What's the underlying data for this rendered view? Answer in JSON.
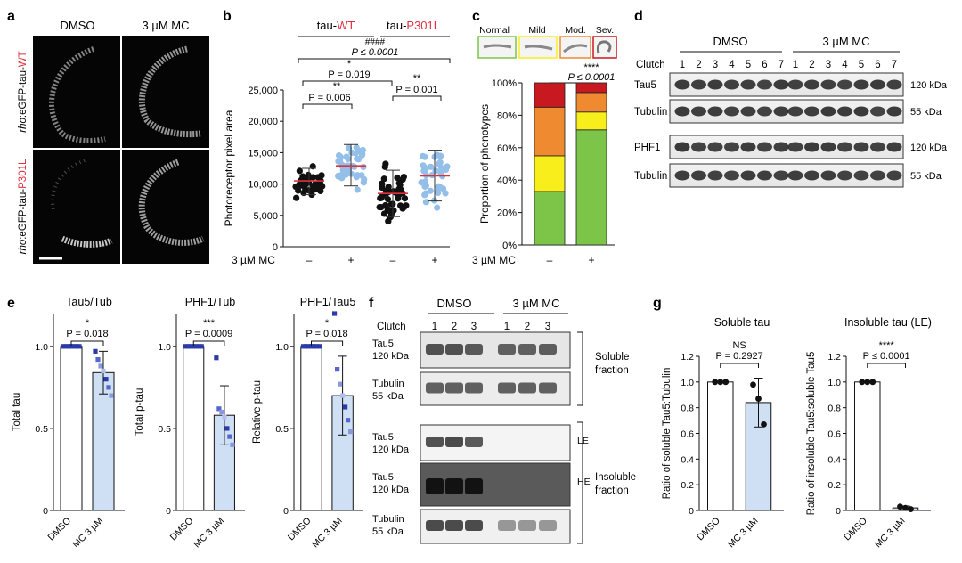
{
  "panel_a": {
    "letter": "a",
    "col_labels": [
      "DMSO",
      "3 µM MC"
    ],
    "row1_prefix": "rho",
    "row1_middle": ":eGFP-tau-",
    "row1_suffix": "WT",
    "row2_prefix": "rho",
    "row2_middle": ":eGFP-tau-",
    "row2_suffix": "P301L"
  },
  "panel_b": {
    "letter": "b",
    "group_wt_prefix": "tau-",
    "group_wt_suffix": "WT",
    "group_mut_prefix": "tau-",
    "group_mut_suffix": "P301L",
    "sig_top_stars": "####",
    "sig_top_p": "P ≤ 0.0001",
    "sig_star1": "*",
    "sig_p1": "P = 0.019",
    "sig_wt_stars": "**",
    "sig_wt_p": "P = 0.006",
    "sig_mut_stars": "**",
    "sig_mut_p": "P = 0.001",
    "treatment_label": "3 µM MC",
    "treatment_values": [
      "–",
      "+",
      "–",
      "+"
    ]
  },
  "panel_c": {
    "letter": "c",
    "phenotypes": [
      "Normal",
      "Mild",
      "Mod.",
      "Sev."
    ],
    "sig_stars": "****",
    "sig_p": "P ≤ 0.0001",
    "treatment_label": "3 µM MC",
    "treatment_values": [
      "–",
      "+"
    ]
  },
  "panel_d": {
    "letter": "d",
    "group_labels": [
      "DMSO",
      "3 µM MC"
    ],
    "clutch_label": "Clutch",
    "clutch_numbers": [
      "1",
      "2",
      "3",
      "4",
      "5",
      "6",
      "7",
      "1",
      "2",
      "3",
      "4",
      "5",
      "6",
      "7"
    ],
    "row_labels": [
      "Tau5",
      "Tubulin",
      "PHF1",
      "Tubulin"
    ],
    "kda_labels": [
      "120 kDa",
      "55 kDa",
      "120 kDa",
      "55 kDa"
    ]
  },
  "panel_e": {
    "letter": "e",
    "plots": [
      {
        "title": "Tau5/Tub",
        "stars": "*",
        "p": "P = 0.018"
      },
      {
        "title": "PHF1/Tub",
        "stars": "***",
        "p": "P = 0.0009"
      },
      {
        "title": "PHF1/Tau5",
        "stars": "*",
        "p": "P = 0.018"
      }
    ],
    "x_labels": [
      "DMSO",
      "MC 3 µM"
    ]
  },
  "panel_f": {
    "letter": "f",
    "group_labels": [
      "DMSO",
      "3 µM MC"
    ],
    "clutch_label": "Clutch",
    "clutch_numbers": [
      "1",
      "2",
      "3",
      "1",
      "2",
      "3"
    ],
    "blot_labels": [
      [
        "Tau5",
        "120 kDa"
      ],
      [
        "Tubulin",
        "55 kDa"
      ],
      [
        "Tau5",
        "120 kDa"
      ],
      [
        "Tau5",
        "120 kDa"
      ],
      [
        "Tubulin",
        "55 kDa"
      ]
    ],
    "soluble_label": [
      "Soluble",
      "fraction"
    ],
    "insoluble_label": [
      "Insoluble",
      "fraction"
    ],
    "le_label": "LE",
    "he_label": "HE"
  },
  "panel_g": {
    "letter": "g",
    "plots": [
      {
        "title": "Soluble tau",
        "stars": "NS",
        "p": "P = 0.2927"
      },
      {
        "title": "Insoluble tau (LE)",
        "stars": "****",
        "p": "P ≤ 0.0001"
      }
    ],
    "x_labels": [
      "DMSO",
      "MC 3 µM"
    ]
  },
  "chart_data": [
    {
      "panel": "b",
      "type": "scatter",
      "ylabel": "Photoreceptor pixel area",
      "ylim": [
        0,
        25000
      ],
      "yticks": [
        0,
        5000,
        10000,
        15000,
        20000,
        25000
      ],
      "ytick_labels": [
        "0",
        "5,000",
        "10,000",
        "15,000",
        "20,000",
        "25,000"
      ],
      "groups": [
        {
          "mean": 10500,
          "sd_low": 8300,
          "sd_high": 12500,
          "color": "#111111",
          "n": 40
        },
        {
          "mean": 12900,
          "sd_low": 9700,
          "sd_high": 16300,
          "color": "#93bfe8",
          "n": 40
        },
        {
          "mean": 8500,
          "sd_low": 4800,
          "sd_high": 12200,
          "color": "#111111",
          "n": 50
        },
        {
          "mean": 11300,
          "sd_low": 7300,
          "sd_high": 15400,
          "color": "#93bfe8",
          "n": 40
        }
      ],
      "mean_line_color": "#e03040"
    },
    {
      "panel": "c",
      "type": "bar",
      "stacked": true,
      "ylabel": "Proportion of phenotypes",
      "ylim": [
        0,
        100
      ],
      "yticks": [
        0,
        20,
        40,
        60,
        80,
        100
      ],
      "ytick_labels": [
        "0%",
        "20%",
        "40%",
        "60%",
        "80%",
        "100%"
      ],
      "categories": [
        "–",
        "+"
      ],
      "series": [
        {
          "values": [
            33,
            71
          ],
          "color": "#7dc548"
        },
        {
          "values": [
            22,
            11
          ],
          "color": "#f7ee1b"
        },
        {
          "values": [
            30,
            12
          ],
          "color": "#f08a30"
        },
        {
          "values": [
            15,
            6
          ],
          "color": "#c81820"
        }
      ]
    },
    {
      "panel": "e",
      "type": "bar",
      "ylabel": "Total tau",
      "ylim": [
        0,
        1.2
      ],
      "yticks": [
        0,
        0.5,
        1.0
      ],
      "ytick_labels": [
        "0",
        "0.5",
        "1.0"
      ],
      "categories": [
        "DMSO",
        "MC 3 µM"
      ],
      "values": [
        1.0,
        0.84
      ],
      "error": [
        0,
        0.13
      ],
      "points": [
        [
          1,
          1,
          1,
          1,
          1,
          1,
          1
        ],
        [
          0.97,
          0.92,
          0.88,
          0.85,
          0.8,
          0.75,
          0.7
        ]
      ]
    },
    {
      "panel": "e",
      "type": "bar",
      "ylabel": "Total p-tau",
      "ylim": [
        0,
        1.2
      ],
      "yticks": [
        0,
        0.5,
        1.0
      ],
      "ytick_labels": [
        "0",
        "0.5",
        "1.0"
      ],
      "categories": [
        "DMSO",
        "MC 3 µM"
      ],
      "values": [
        1.0,
        0.58
      ],
      "error": [
        0,
        0.18
      ],
      "points": [
        [
          1,
          1,
          1,
          1,
          1,
          1,
          1
        ],
        [
          0.93,
          0.62,
          0.6,
          0.57,
          0.5,
          0.45,
          0.4
        ]
      ]
    },
    {
      "panel": "e",
      "type": "bar",
      "ylabel": "Relative p-tau",
      "ylim": [
        0,
        1.2
      ],
      "yticks": [
        0,
        0.5,
        1.0
      ],
      "ytick_labels": [
        "0",
        "0.5",
        "1.0"
      ],
      "categories": [
        "DMSO",
        "MC 3 µM"
      ],
      "values": [
        1.0,
        0.7
      ],
      "error": [
        0,
        0.24
      ],
      "points": [
        [
          1,
          1,
          1,
          1,
          1,
          1,
          1
        ],
        [
          1.2,
          0.86,
          0.77,
          0.7,
          0.63,
          0.55,
          0.48
        ]
      ]
    },
    {
      "panel": "g",
      "type": "bar",
      "ylabel": "Ratio of soluble Tau5:Tubulin",
      "ylim": [
        0,
        1.2
      ],
      "yticks": [
        0,
        0.2,
        0.4,
        0.6,
        0.8,
        1.0,
        1.2
      ],
      "ytick_labels": [
        "0",
        "0.2",
        "0.4",
        "0.6",
        "0.8",
        "1.0",
        "1.2"
      ],
      "categories": [
        "DMSO",
        "MC 3 µM"
      ],
      "values": [
        1.0,
        0.84
      ],
      "error": [
        0,
        0.19
      ],
      "points": [
        [
          1,
          1,
          1
        ],
        [
          0.98,
          0.87,
          0.67
        ]
      ]
    },
    {
      "panel": "g",
      "type": "bar",
      "ylabel": "Ratio of insoluble Tau5:soluble Tau5",
      "ylim": [
        0,
        1.2
      ],
      "yticks": [
        0,
        0.2,
        0.4,
        0.6,
        0.8,
        1.0,
        1.2
      ],
      "ytick_labels": [
        "0",
        "0.2",
        "0.4",
        "0.6",
        "0.8",
        "1.0",
        "1.2"
      ],
      "categories": [
        "DMSO",
        "MC 3 µM"
      ],
      "values": [
        1.0,
        0.02
      ],
      "error": [
        0,
        0.015
      ],
      "points": [
        [
          1,
          1,
          1
        ],
        [
          0.03,
          0.02,
          0.01
        ]
      ]
    }
  ]
}
